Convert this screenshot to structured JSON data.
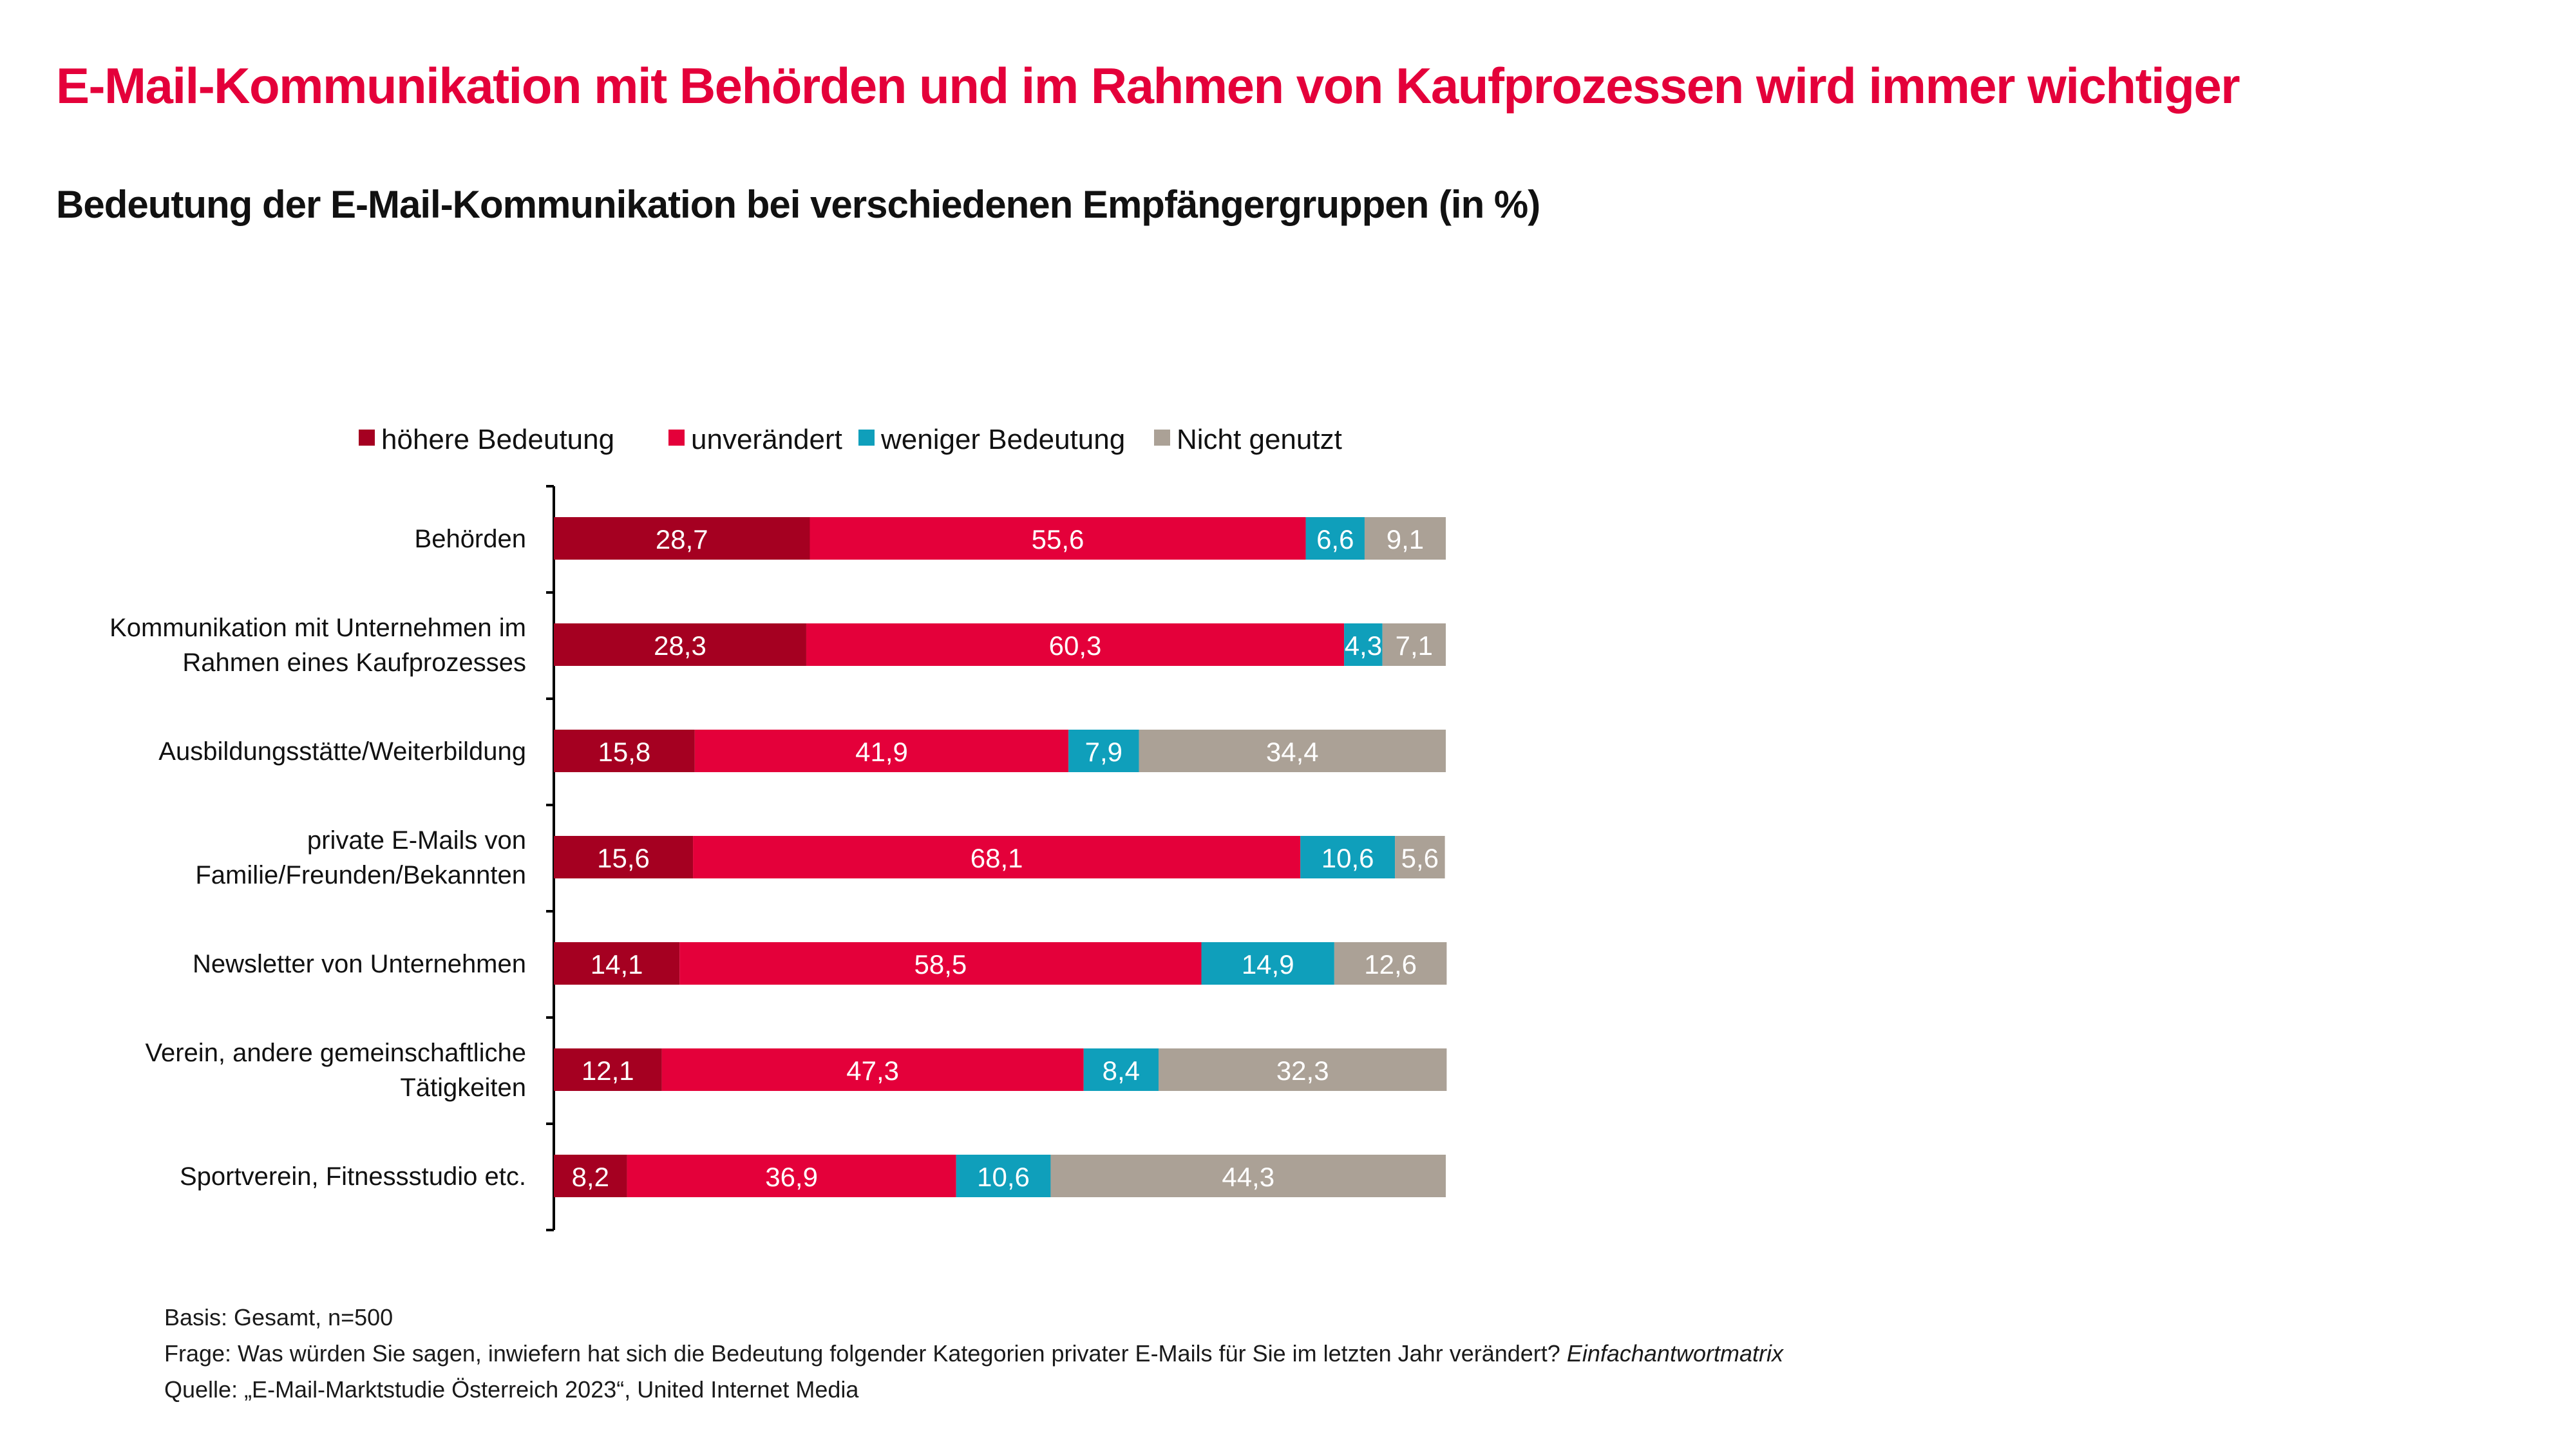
{
  "header": {
    "title": "E-Mail-Kommunikation mit Behörden und im Rahmen von Kaufprozessen wird immer wichtiger",
    "subtitle": "Bedeutung der E-Mail-Kommunikation bei verschiedenen Empfängergruppen (in %)"
  },
  "chart_data": {
    "type": "bar",
    "orientation": "horizontal",
    "stacked": true,
    "title": "Bedeutung der E-Mail-Kommunikation bei verschiedenen Empfängergruppen (in %)",
    "xlabel": "",
    "ylabel": "",
    "xlim": [
      0,
      100
    ],
    "grid": false,
    "legend_position": "top",
    "categories": [
      [
        "Behörden"
      ],
      [
        "Kommunikation mit Unternehmen im",
        "Rahmen eines Kaufprozesses"
      ],
      [
        "Ausbildungsstätte/Weiterbildung"
      ],
      [
        "private E-Mails von",
        "Familie/Freunden/Bekannten"
      ],
      [
        "Newsletter von Unternehmen"
      ],
      [
        "Verein, andere gemeinschaftliche",
        "Tätigkeiten"
      ],
      [
        "Sportverein, Fitnessstudio etc."
      ]
    ],
    "series": [
      {
        "name": "höhere Bedeutung",
        "color": "#a50021",
        "values": [
          28.7,
          28.3,
          15.8,
          15.6,
          14.1,
          12.1,
          8.2
        ]
      },
      {
        "name": "unverändert",
        "color": "#e4003a",
        "values": [
          55.6,
          60.3,
          41.9,
          68.1,
          58.5,
          47.3,
          36.9
        ]
      },
      {
        "name": "weniger Bedeutung",
        "color": "#0f9fbb",
        "values": [
          6.6,
          4.3,
          7.9,
          10.6,
          14.9,
          8.4,
          10.6
        ]
      },
      {
        "name": "Nicht genutzt",
        "color": "#aba196",
        "values": [
          9.1,
          7.1,
          34.4,
          5.6,
          12.6,
          32.3,
          44.3
        ]
      }
    ]
  },
  "footnotes": {
    "basis": "Basis: Gesamt, n=500",
    "frage": "Frage: Was würden Sie sagen, inwiefern hat sich die Bedeutung folgender Kategorien privater E-Mails für Sie im letzten Jahr verändert?",
    "frage_suffix": "Einfachantwortmatrix",
    "quelle": "Quelle: „E-Mail-Marktstudie Österreich 2023“, United Internet Media"
  }
}
